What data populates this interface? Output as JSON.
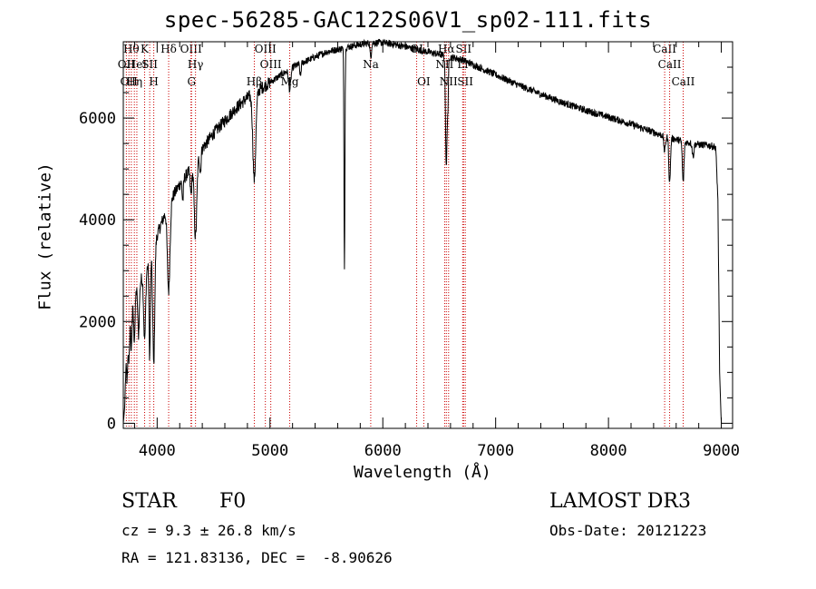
{
  "chart_data": {
    "type": "line",
    "title": "spec-56285-GAC122S06V1_sp02-111.fits",
    "xlabel": "Wavelength (Å)",
    "ylabel": "Flux (relative)",
    "xlim": [
      3700,
      9100
    ],
    "ylim": [
      -100,
      7500
    ],
    "xticks": [
      4000,
      5000,
      6000,
      7000,
      8000,
      9000
    ],
    "yticks": [
      0,
      2000,
      4000,
      6000
    ],
    "continuum": [
      [
        3700,
        0
      ],
      [
        3712,
        300
      ],
      [
        3730,
        1700
      ],
      [
        3760,
        2100
      ],
      [
        3800,
        2600
      ],
      [
        3850,
        2800
      ],
      [
        3900,
        3000
      ],
      [
        3950,
        3300
      ],
      [
        4000,
        3700
      ],
      [
        4050,
        4000
      ],
      [
        4100,
        4300
      ],
      [
        4200,
        4700
      ],
      [
        4300,
        5000
      ],
      [
        4400,
        5400
      ],
      [
        4500,
        5700
      ],
      [
        4600,
        5950
      ],
      [
        4700,
        6200
      ],
      [
        4800,
        6400
      ],
      [
        4900,
        6550
      ],
      [
        5000,
        6700
      ],
      [
        5100,
        6850
      ],
      [
        5200,
        7000
      ],
      [
        5300,
        7100
      ],
      [
        5400,
        7200
      ],
      [
        5500,
        7300
      ],
      [
        5600,
        7350
      ],
      [
        5700,
        7400
      ],
      [
        5800,
        7450
      ],
      [
        5900,
        7480
      ],
      [
        6000,
        7480
      ],
      [
        6100,
        7450
      ],
      [
        6200,
        7400
      ],
      [
        6300,
        7350
      ],
      [
        6400,
        7300
      ],
      [
        6500,
        7250
      ],
      [
        6600,
        7200
      ],
      [
        6700,
        7150
      ],
      [
        6800,
        7050
      ],
      [
        6900,
        6950
      ],
      [
        7000,
        6850
      ],
      [
        7200,
        6650
      ],
      [
        7400,
        6470
      ],
      [
        7600,
        6300
      ],
      [
        7800,
        6150
      ],
      [
        8000,
        6020
      ],
      [
        8200,
        5880
      ],
      [
        8400,
        5720
      ],
      [
        8500,
        5640
      ],
      [
        8600,
        5580
      ],
      [
        8700,
        5520
      ],
      [
        8800,
        5480
      ],
      [
        8900,
        5460
      ],
      [
        8950,
        5430
      ],
      [
        8970,
        4400
      ],
      [
        8985,
        1000
      ],
      [
        9000,
        0
      ]
    ],
    "absorptions": [
      {
        "x": 3734,
        "depth": 900,
        "w": 8
      },
      {
        "x": 3750,
        "depth": 700,
        "w": 8
      },
      {
        "x": 3771,
        "depth": 800,
        "w": 8
      },
      {
        "x": 3798,
        "depth": 900,
        "w": 10
      },
      {
        "x": 3835,
        "depth": 1000,
        "w": 10
      },
      {
        "x": 3889,
        "depth": 1300,
        "w": 12
      },
      {
        "x": 3934,
        "depth": 1900,
        "w": 8
      },
      {
        "x": 3970,
        "depth": 2300,
        "w": 12
      },
      {
        "x": 4102,
        "depth": 1700,
        "w": 16
      },
      {
        "x": 4227,
        "depth": 400,
        "w": 8
      },
      {
        "x": 4300,
        "depth": 500,
        "w": 10
      },
      {
        "x": 4340,
        "depth": 1500,
        "w": 16
      },
      {
        "x": 4383,
        "depth": 400,
        "w": 8
      },
      {
        "x": 4861,
        "depth": 1700,
        "w": 18
      },
      {
        "x": 5175,
        "depth": 400,
        "w": 14
      },
      {
        "x": 5270,
        "depth": 250,
        "w": 8
      },
      {
        "x": 5660,
        "depth": 4300,
        "w": 6
      },
      {
        "x": 5893,
        "depth": 300,
        "w": 8
      },
      {
        "x": 6563,
        "depth": 2200,
        "w": 10
      },
      {
        "x": 6578,
        "depth": 800,
        "w": 6
      },
      {
        "x": 8498,
        "depth": 300,
        "w": 10
      },
      {
        "x": 8542,
        "depth": 900,
        "w": 10
      },
      {
        "x": 8662,
        "depth": 800,
        "w": 10
      },
      {
        "x": 8750,
        "depth": 250,
        "w": 10
      }
    ],
    "noise_amplitude": 70,
    "line_markers": [
      {
        "x": 3727,
        "label": "OII",
        "row": 2
      },
      {
        "x": 3750,
        "label": "OII",
        "row": 3
      },
      {
        "x": 3771,
        "label": "Hθ",
        "row": 1
      },
      {
        "x": 3798,
        "label": "Hη",
        "row": 3
      },
      {
        "x": 3820,
        "label": "HeI",
        "row": 2
      },
      {
        "x": 3889,
        "label": "K",
        "row": 1
      },
      {
        "x": 3934,
        "label": "SII",
        "row": 2
      },
      {
        "x": 3970,
        "label": "H",
        "row": 3
      },
      {
        "x": 4102,
        "label": "Hδ",
        "row": 1
      },
      {
        "x": 4300,
        "label": "OIII",
        "row": 1
      },
      {
        "x": 4340,
        "label": "Hγ",
        "row": 2
      },
      {
        "x": 4305,
        "label": "G",
        "row": 3
      },
      {
        "x": 4861,
        "label": "Hβ",
        "row": 3
      },
      {
        "x": 4959,
        "label": "OIII",
        "row": 1
      },
      {
        "x": 5007,
        "label": "OIII",
        "row": 2
      },
      {
        "x": 5175,
        "label": "Mg",
        "row": 3
      },
      {
        "x": 5893,
        "label": "Na",
        "row": 2
      },
      {
        "x": 6300,
        "label": "OI",
        "row": 1
      },
      {
        "x": 6363,
        "label": "OI",
        "row": 3
      },
      {
        "x": 6548,
        "label": "NII",
        "row": 2
      },
      {
        "x": 6563,
        "label": "Hα",
        "row": 1
      },
      {
        "x": 6583,
        "label": "NII",
        "row": 3
      },
      {
        "x": 6716,
        "label": "SII",
        "row": 1
      },
      {
        "x": 6731,
        "label": "SII",
        "row": 3
      },
      {
        "x": 6708,
        "label": "Li",
        "row": 2
      },
      {
        "x": 8498,
        "label": "CaII",
        "row": 1
      },
      {
        "x": 8542,
        "label": "CaII",
        "row": 2
      },
      {
        "x": 8662,
        "label": "CaII",
        "row": 3
      }
    ]
  },
  "info": {
    "class": "STAR",
    "subclass": "F0",
    "survey": "LAMOST DR3",
    "cz": "cz = 9.3 ± 26.8 km/s",
    "obs_date": "Obs-Date: 20121223",
    "radec": "RA = 121.83136, DEC =  -8.90626"
  }
}
